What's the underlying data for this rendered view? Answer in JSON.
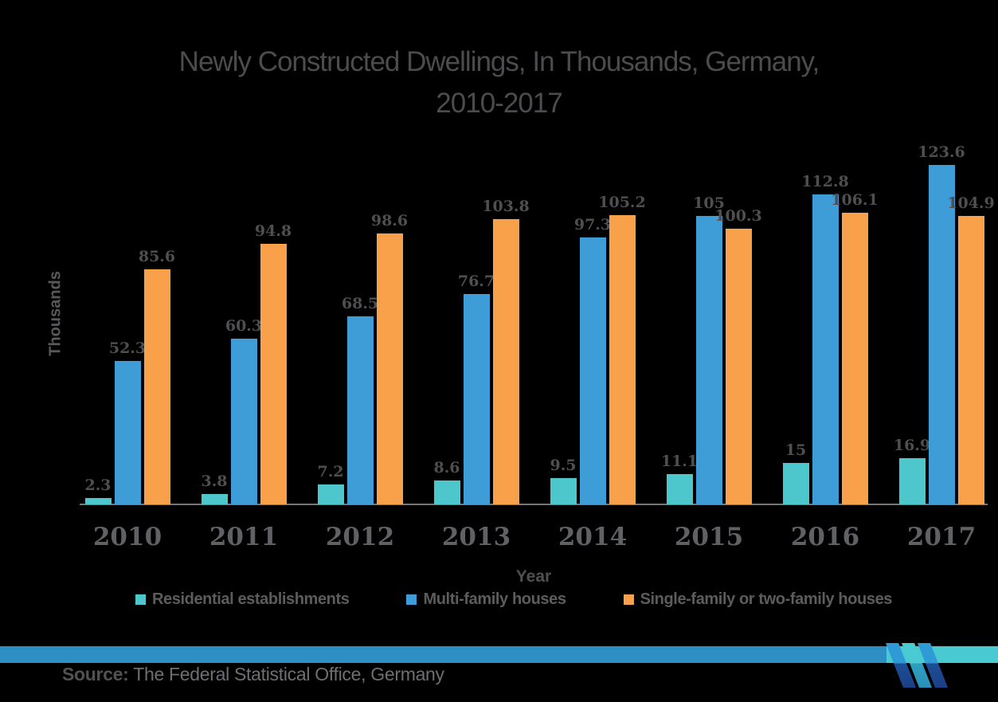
{
  "title": {
    "line1": "Newly Constructed Dwellings, In Thousands, Germany,",
    "line2": "2010-2017"
  },
  "chart_data": {
    "type": "bar",
    "title": "Newly Constructed Dwellings, In Thousands, Germany, 2010-2017",
    "xlabel": "Year",
    "ylabel": "Thousands",
    "ylim": [
      0,
      130
    ],
    "grid": false,
    "legend_position": "bottom",
    "categories": [
      "2010",
      "2011",
      "2012",
      "2013",
      "2014",
      "2015",
      "2016",
      "2017"
    ],
    "series": [
      {
        "name": "Residential establishments",
        "color": "#4DC6CC",
        "values": [
          2.3,
          3.8,
          7.2,
          8.6,
          9.5,
          11.1,
          15,
          16.9
        ]
      },
      {
        "name": "Multi-family houses",
        "color": "#3E9CD6",
        "values": [
          52.3,
          60.3,
          68.5,
          76.7,
          97.3,
          105,
          112.8,
          123.6
        ]
      },
      {
        "name": "Single-family or two-family houses",
        "color": "#F9A14A",
        "values": [
          85.6,
          94.8,
          98.6,
          103.8,
          105.2,
          100.3,
          106.1,
          104.9
        ]
      }
    ]
  },
  "source": {
    "prefix": "Source:",
    "text": " The Federal Statistical Office, Germany"
  },
  "branding": {
    "logo": "mordor-intelligence-logo",
    "stripe_blue": "#2E8FC4",
    "stripe_teal": "#49CAD2"
  }
}
